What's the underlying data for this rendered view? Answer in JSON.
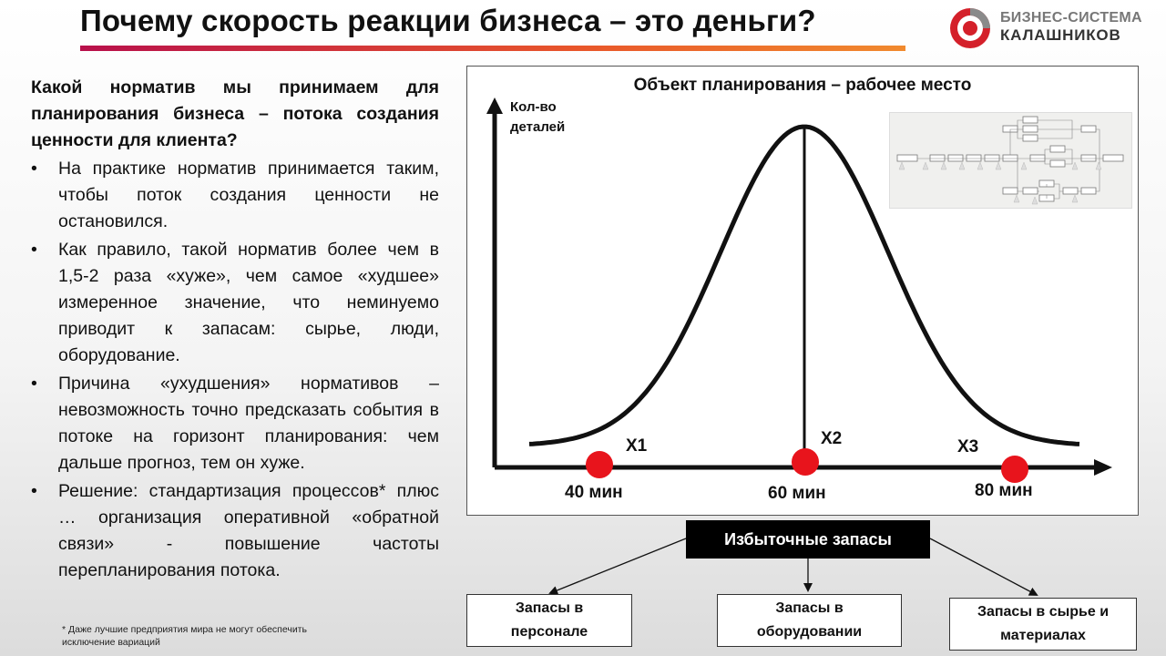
{
  "title": "Почему скорость реакции бизнеса – это деньги?",
  "logo": {
    "line1": "БИЗНЕС-СИСТЕМА",
    "line2": "КАЛАШНИКОВ"
  },
  "left": {
    "question": "Какой норматив мы принимаем для планирования  бизнеса – потока создания ценности для клиента?",
    "bullets": [
      "На практике норматив принимается таким, чтобы поток создания ценности не остановился.",
      "Как правило, такой норматив более чем в 1,5-2 раза «хуже», чем самое «худшее» измеренное значение, что неминуемо приводит к запасам: сырье, люди, оборудование.",
      "Причина «ухудшения» нормативов – невозможность точно предсказать события в потоке на горизонт планирования: чем дальше прогноз, тем он хуже.",
      "Решение: стандартизация процессов* плюс … организация оперативной «обратной связи» - повышение частоты перепланирования потока."
    ],
    "footnote": "* Даже лучшие предприятия мира не могут обеспечить исключение вариаций"
  },
  "chart": {
    "title": "Объект планирования – рабочее место",
    "ylabel_line1": "Кол-во",
    "ylabel_line2": "деталей",
    "points": [
      {
        "name": "X1",
        "time": "40 мин"
      },
      {
        "name": "X2",
        "time": "60 мин"
      },
      {
        "name": "X3",
        "time": "80 мин"
      }
    ],
    "marker_color": "#e8141c"
  },
  "excess_label": "Избыточные запасы",
  "boxes": [
    {
      "line1": "Запасы в",
      "line2": "персонале"
    },
    {
      "line1": "Запасы в",
      "line2": "оборудовании"
    },
    {
      "line1": "Запасы в сырье  и",
      "line2": "материалах"
    }
  ],
  "colors": {
    "accent_start": "#b8104b",
    "accent_end": "#f18a2e",
    "logo_red": "#d4202a"
  }
}
